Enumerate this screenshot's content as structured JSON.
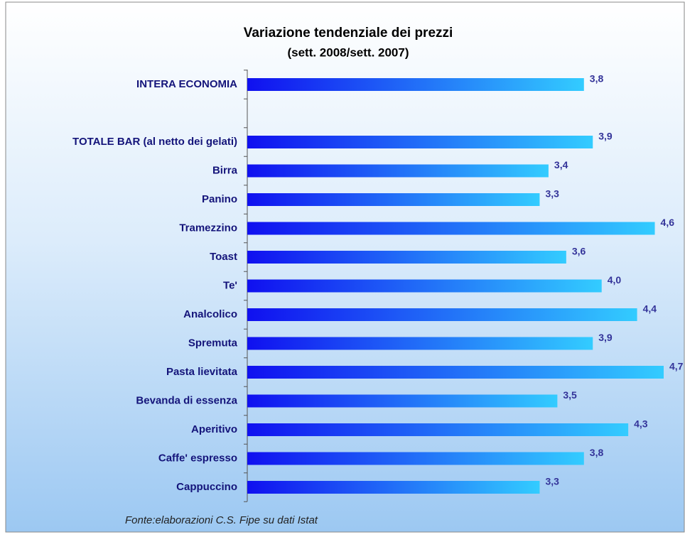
{
  "chart_data": {
    "type": "hbar",
    "title": "Variazione tendenziale dei prezzi",
    "subtitle": "(sett. 2008/sett. 2007)",
    "categories": [
      "INTERA ECONOMIA",
      null,
      "TOTALE BAR (al netto dei gelati)",
      "Birra",
      "Panino",
      "Tramezzino",
      "Toast",
      "Te'",
      "Analcolico",
      "Spremuta",
      "Pasta lievitata",
      "Bevanda di essenza",
      "Aperitivo",
      "Caffe' espresso",
      "Cappuccino"
    ],
    "values": [
      3.8,
      null,
      3.9,
      3.4,
      3.3,
      4.6,
      3.6,
      4.0,
      4.4,
      3.9,
      4.7,
      3.5,
      4.3,
      3.8,
      3.3
    ],
    "value_labels": [
      "3,8",
      null,
      "3,9",
      "3,4",
      "3,3",
      "4,6",
      "3,6",
      "4,0",
      "4,4",
      "3,9",
      "4,7",
      "3,5",
      "4,3",
      "3,8",
      "3,3"
    ],
    "color": [
      "#1010f0",
      "#33ccff"
    ],
    "source": "Fonte:elaborazioni C.S. Fipe su dati Istat"
  }
}
